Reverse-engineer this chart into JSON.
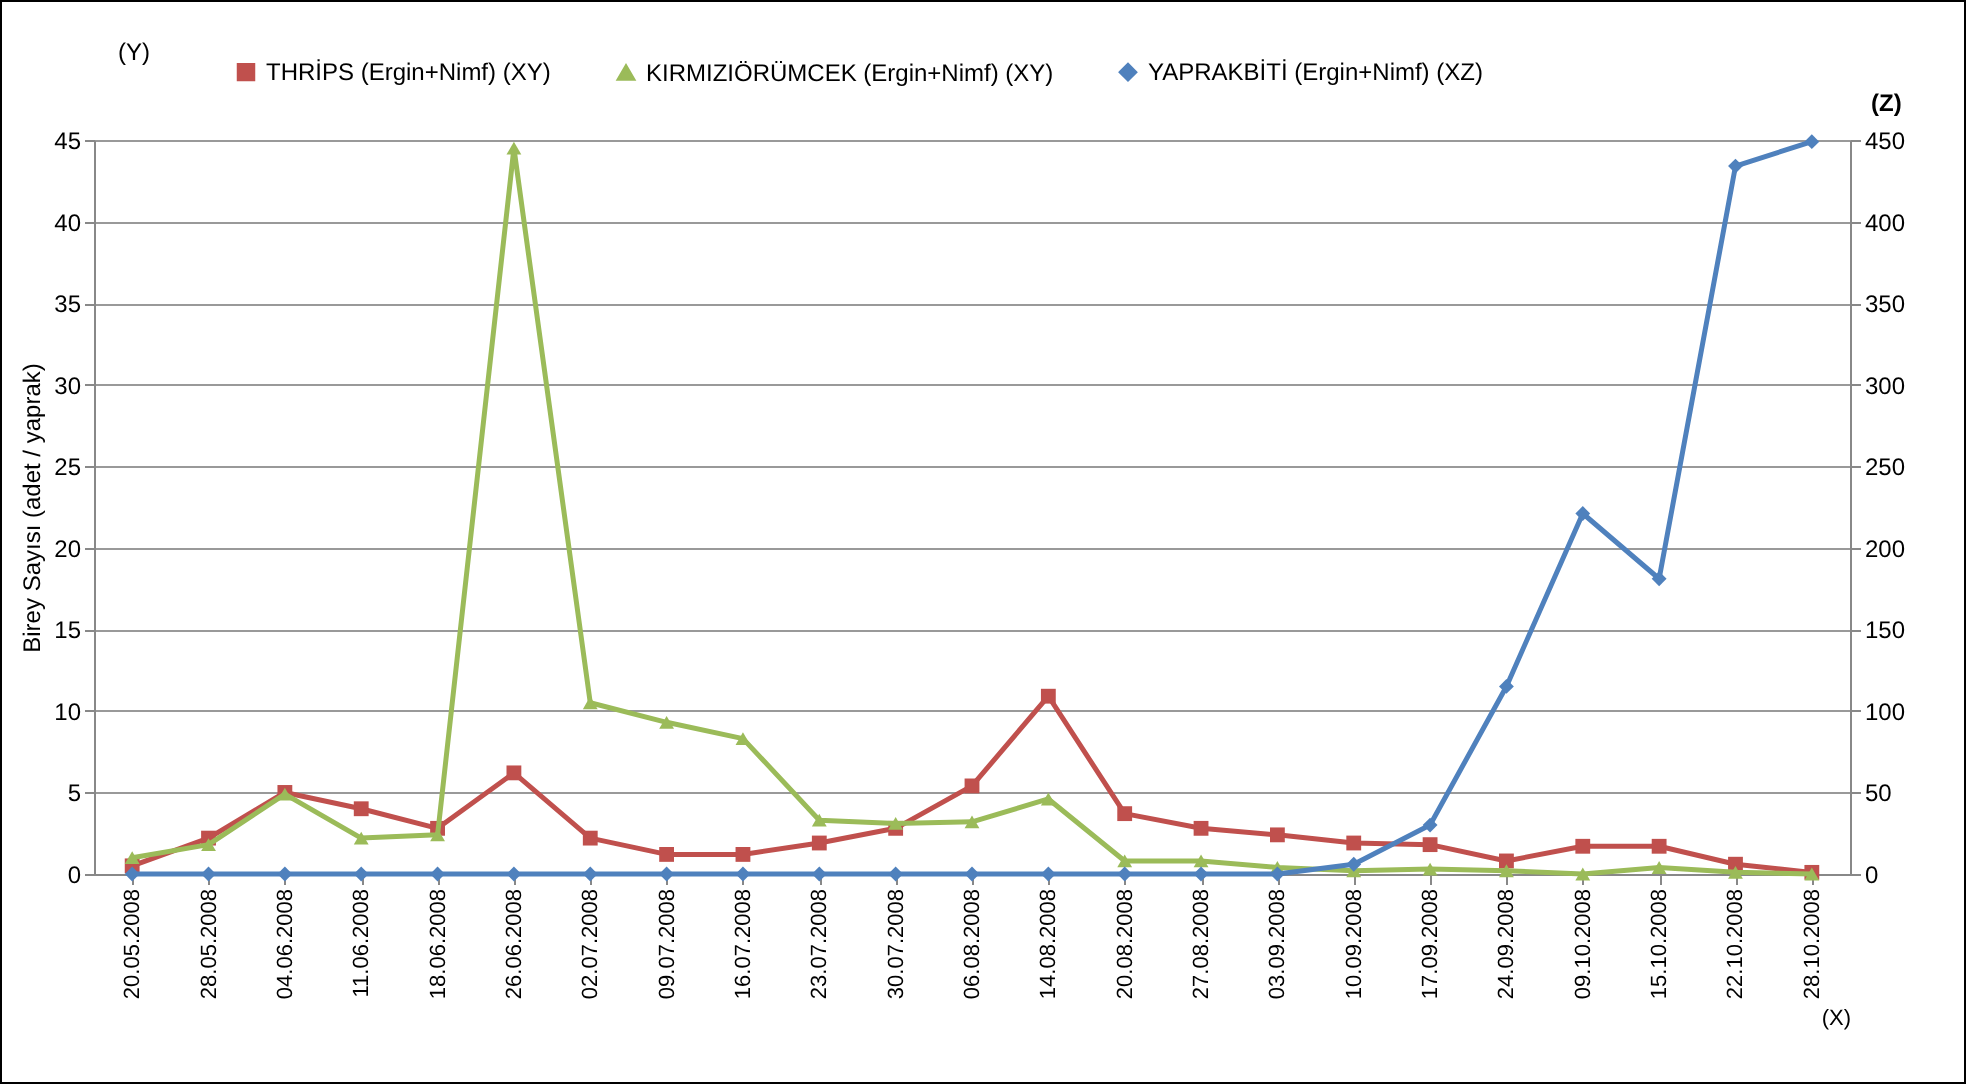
{
  "chart_data": {
    "type": "line",
    "ylabel": "Birey Sayısı (adet / yaprak)",
    "xlabel": "(X)",
    "y2label": "(Z)",
    "annotations": [
      "(Y)"
    ],
    "categories": [
      "20.05.2008",
      "28.05.2008",
      "04.06.2008",
      "11.06.2008",
      "18.06.2008",
      "26.06.2008",
      "02.07.2008",
      "09.07.2008",
      "16.07.2008",
      "23.07.2008",
      "30.07.2008",
      "06.08.2008",
      "14.08.2008",
      "20.08.2008",
      "27.08.2008",
      "03.09.2008",
      "10.09.2008",
      "17.09.2008",
      "24.09.2008",
      "09.10.2008",
      "15.10.2008",
      "22.10.2008",
      "28.10.2008"
    ],
    "series": [
      {
        "name": "THRİPS (Ergin+Nimf) (XY)",
        "color": "#c0504d",
        "marker": "square",
        "values": [
          0.5,
          2.2,
          5.0,
          4.0,
          2.8,
          6.2,
          2.2,
          1.2,
          1.2,
          1.9,
          2.8,
          5.4,
          10.9,
          3.7,
          2.8,
          2.4,
          1.9,
          1.8,
          0.8,
          1.7,
          1.7,
          0.6,
          0.1
        ]
      },
      {
        "name": "KIRMIZIÖRÜMCEK (Ergin+Nimf) (XY)",
        "color": "#9bbb59",
        "marker": "triangle",
        "values": [
          1.0,
          1.8,
          4.9,
          2.2,
          2.4,
          44.5,
          10.5,
          9.3,
          8.3,
          3.3,
          3.1,
          3.2,
          4.6,
          0.8,
          0.8,
          0.4,
          0.2,
          0.3,
          0.2,
          0,
          0.4,
          0.1,
          0
        ]
      },
      {
        "name": "YAPRAKBİTİ (Ergin+Nimf) (XZ)",
        "color": "#4f81bd",
        "marker": "diamond",
        "axis": "y2",
        "values": [
          0,
          0,
          0,
          0,
          0,
          0,
          0,
          0,
          0,
          0,
          0,
          0,
          0,
          0,
          0,
          0,
          6,
          30,
          115,
          221,
          181,
          434,
          449
        ]
      }
    ],
    "ylim": [
      0,
      45
    ],
    "yticks": [
      0,
      5,
      10,
      15,
      20,
      25,
      30,
      35,
      40,
      45
    ],
    "y2lim": [
      0,
      450
    ],
    "y2ticks": [
      0,
      50,
      100,
      150,
      200,
      250,
      300,
      350,
      400,
      450
    ],
    "grid": "y",
    "legend": "top",
    "line_style": "solid"
  }
}
